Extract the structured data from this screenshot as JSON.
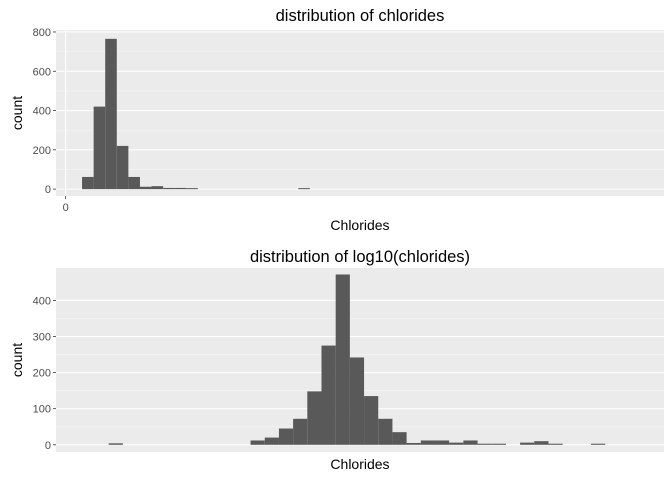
{
  "chart_data": [
    {
      "type": "bar",
      "subtype": "histogram",
      "title": "distribution of chlorides",
      "xlabel": "Chlorides",
      "ylabel": "count",
      "xlim": [
        -0.01,
        0.62
      ],
      "ylim": [
        -35,
        810
      ],
      "x_ticks": [
        0
      ],
      "y_ticks": [
        0,
        200,
        400,
        600,
        800
      ],
      "grid": true,
      "bar_color": "#595959",
      "panel_color": "#ebebeb",
      "bins": [
        {
          "x0": 0.017,
          "x1": 0.029,
          "count": 62
        },
        {
          "x0": 0.029,
          "x1": 0.041,
          "count": 420
        },
        {
          "x0": 0.041,
          "x1": 0.053,
          "count": 765
        },
        {
          "x0": 0.053,
          "x1": 0.065,
          "count": 220
        },
        {
          "x0": 0.065,
          "x1": 0.077,
          "count": 62
        },
        {
          "x0": 0.077,
          "x1": 0.089,
          "count": 12
        },
        {
          "x0": 0.089,
          "x1": 0.101,
          "count": 15
        },
        {
          "x0": 0.101,
          "x1": 0.113,
          "count": 6
        },
        {
          "x0": 0.113,
          "x1": 0.125,
          "count": 6
        },
        {
          "x0": 0.125,
          "x1": 0.137,
          "count": 5
        },
        {
          "x0": 0.241,
          "x1": 0.253,
          "count": 5
        }
      ]
    },
    {
      "type": "bar",
      "subtype": "histogram",
      "title": "distribution of log10(chlorides)",
      "xlabel": "Chlorides",
      "ylabel": "count",
      "xlim": [
        -1.98,
        -0.48
      ],
      "ylim": [
        -20,
        490
      ],
      "x_ticks": [],
      "y_ticks": [
        0,
        100,
        200,
        300,
        400
      ],
      "grid": true,
      "bar_color": "#595959",
      "panel_color": "#ebebeb",
      "bins": [
        {
          "x0": -1.85,
          "x1": -1.815,
          "count": 4
        },
        {
          "x0": -1.5,
          "x1": -1.465,
          "count": 12
        },
        {
          "x0": -1.465,
          "x1": -1.43,
          "count": 20
        },
        {
          "x0": -1.43,
          "x1": -1.395,
          "count": 45
        },
        {
          "x0": -1.395,
          "x1": -1.36,
          "count": 72
        },
        {
          "x0": -1.36,
          "x1": -1.325,
          "count": 148
        },
        {
          "x0": -1.325,
          "x1": -1.29,
          "count": 275
        },
        {
          "x0": -1.29,
          "x1": -1.255,
          "count": 472
        },
        {
          "x0": -1.255,
          "x1": -1.22,
          "count": 242
        },
        {
          "x0": -1.22,
          "x1": -1.185,
          "count": 135
        },
        {
          "x0": -1.185,
          "x1": -1.15,
          "count": 72
        },
        {
          "x0": -1.15,
          "x1": -1.115,
          "count": 35
        },
        {
          "x0": -1.115,
          "x1": -1.08,
          "count": 5
        },
        {
          "x0": -1.08,
          "x1": -1.045,
          "count": 12
        },
        {
          "x0": -1.045,
          "x1": -1.01,
          "count": 12
        },
        {
          "x0": -1.01,
          "x1": -0.975,
          "count": 6
        },
        {
          "x0": -0.975,
          "x1": -0.94,
          "count": 12
        },
        {
          "x0": -0.94,
          "x1": -0.905,
          "count": 3
        },
        {
          "x0": -0.905,
          "x1": -0.87,
          "count": 3
        },
        {
          "x0": -0.835,
          "x1": -0.8,
          "count": 6
        },
        {
          "x0": -0.8,
          "x1": -0.765,
          "count": 10
        },
        {
          "x0": -0.765,
          "x1": -0.73,
          "count": 3
        },
        {
          "x0": -0.66,
          "x1": -0.625,
          "count": 3
        }
      ]
    }
  ]
}
